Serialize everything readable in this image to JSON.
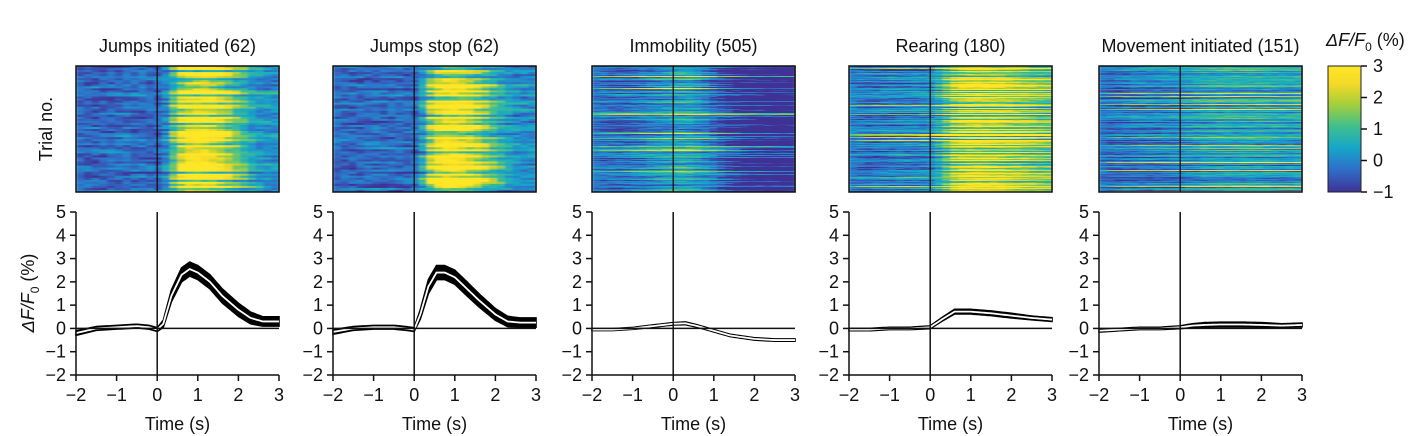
{
  "chart_data": {
    "type": "heatmap-with-line",
    "shared": {
      "heatmap_ylabel": "Trial no.",
      "line_ylabel_parts": [
        "ΔF/F",
        "0",
        " (%)"
      ],
      "xlabel": "Time (s)",
      "xlim": [
        -2,
        3
      ],
      "x_ticks": [
        -2,
        -1,
        0,
        1,
        2,
        3
      ],
      "x_tick_labels": [
        "−2",
        "−1",
        "0",
        "1",
        "2",
        "3"
      ],
      "ylim": [
        -2,
        5
      ],
      "y_ticks": [
        -2,
        -1,
        0,
        1,
        2,
        3,
        4,
        5
      ],
      "y_tick_labels": [
        "−2",
        "−1",
        "0",
        "1",
        "2",
        "3",
        "4",
        "5"
      ],
      "colorbar": {
        "label_parts": [
          "ΔF/F",
          "0",
          " (%)"
        ],
        "range": [
          -1,
          3
        ],
        "ticks": [
          -1,
          0,
          1,
          2,
          3
        ],
        "tick_labels": [
          "−1",
          "0",
          "1",
          "2",
          "3"
        ],
        "colors": [
          "#3f3294",
          "#2f6fc9",
          "#15a6c9",
          "#3fbf8e",
          "#a7cf39",
          "#f5d928",
          "#fde725"
        ]
      }
    },
    "panels": [
      {
        "title": "Jumps initiated (62)",
        "trials": 62,
        "x": [
          -2,
          -1.5,
          -1,
          -0.5,
          -0.2,
          0,
          0.15,
          0.35,
          0.6,
          0.8,
          1.0,
          1.3,
          1.6,
          2.0,
          2.3,
          2.6,
          3
        ],
        "mean": [
          -0.2,
          0,
          0.05,
          0.1,
          0.05,
          -0.05,
          0.2,
          1.4,
          2.3,
          2.55,
          2.4,
          2.0,
          1.4,
          0.8,
          0.45,
          0.3,
          0.3
        ],
        "sem": [
          0.1,
          0.08,
          0.08,
          0.08,
          0.08,
          0.08,
          0.15,
          0.25,
          0.3,
          0.3,
          0.3,
          0.3,
          0.3,
          0.28,
          0.25,
          0.2,
          0.2
        ]
      },
      {
        "title": "Jumps stop (62)",
        "trials": 62,
        "x": [
          -2,
          -1.5,
          -1,
          -0.5,
          -0.2,
          0,
          0.15,
          0.35,
          0.55,
          0.75,
          1.0,
          1.3,
          1.6,
          2.0,
          2.3,
          2.6,
          3
        ],
        "mean": [
          -0.15,
          0,
          0.05,
          0.05,
          0,
          -0.05,
          0.6,
          1.8,
          2.4,
          2.4,
          2.2,
          1.7,
          1.2,
          0.6,
          0.3,
          0.25,
          0.25
        ],
        "sem": [
          0.1,
          0.08,
          0.08,
          0.08,
          0.08,
          0.08,
          0.2,
          0.3,
          0.3,
          0.3,
          0.3,
          0.3,
          0.28,
          0.25,
          0.22,
          0.2,
          0.2
        ]
      },
      {
        "title": "Immobility (505)",
        "trials": 505,
        "x": [
          -2,
          -1.5,
          -1,
          -0.5,
          0,
          0.3,
          0.6,
          1.0,
          1.4,
          2.0,
          2.5,
          3
        ],
        "mean": [
          -0.05,
          -0.05,
          0,
          0.1,
          0.2,
          0.22,
          0.1,
          -0.1,
          -0.3,
          -0.45,
          -0.5,
          -0.5
        ],
        "sem": [
          0.04,
          0.04,
          0.04,
          0.05,
          0.05,
          0.06,
          0.05,
          0.05,
          0.05,
          0.05,
          0.05,
          0.05
        ]
      },
      {
        "title": "Rearing (180)",
        "trials": 180,
        "x": [
          -2,
          -1.5,
          -1,
          -0.5,
          0,
          0.3,
          0.6,
          1.0,
          1.5,
          2.0,
          2.5,
          3
        ],
        "mean": [
          -0.05,
          -0.05,
          0,
          0,
          0.05,
          0.4,
          0.72,
          0.72,
          0.65,
          0.55,
          0.45,
          0.38
        ],
        "sem": [
          0.05,
          0.05,
          0.05,
          0.05,
          0.06,
          0.08,
          0.1,
          0.1,
          0.1,
          0.1,
          0.08,
          0.08
        ]
      },
      {
        "title": "Movement initiated (151)",
        "trials": 151,
        "x": [
          -2,
          -1.5,
          -1,
          -0.5,
          0,
          0.3,
          0.6,
          1.0,
          1.5,
          2.0,
          2.5,
          3
        ],
        "mean": [
          -0.1,
          -0.05,
          0,
          0,
          0.05,
          0.12,
          0.15,
          0.17,
          0.17,
          0.15,
          0.12,
          0.15
        ],
        "sem": [
          0.06,
          0.05,
          0.05,
          0.05,
          0.06,
          0.08,
          0.1,
          0.1,
          0.1,
          0.1,
          0.08,
          0.08
        ]
      }
    ]
  }
}
